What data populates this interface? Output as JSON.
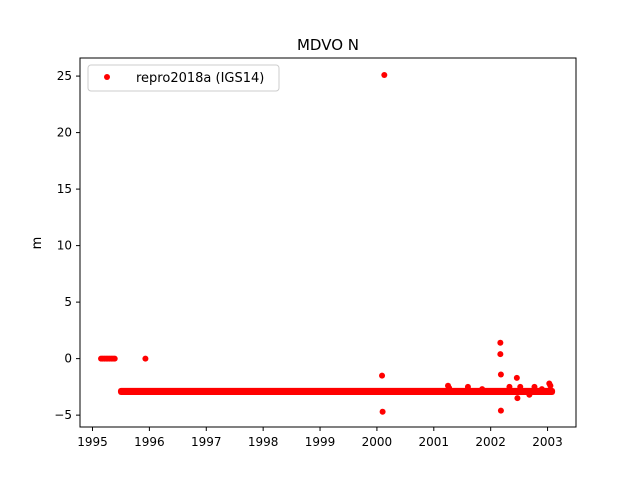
{
  "chart_data": {
    "type": "scatter",
    "title": "MDVO N",
    "xlabel": "",
    "ylabel": "m",
    "xlim": [
      1994.78,
      2003.5
    ],
    "ylim": [
      -6.05,
      26.6
    ],
    "xticks": [
      1995,
      1996,
      1997,
      1998,
      1999,
      2000,
      2001,
      2002,
      2003
    ],
    "yticks": [
      -5,
      0,
      5,
      10,
      15,
      20,
      25
    ],
    "grid": false,
    "legend_position": "top-left",
    "series": [
      {
        "name": "repro2018a (IGS14)",
        "color": "#ff0000",
        "marker": "circle",
        "points": [
          [
            1995.15,
            0.0
          ],
          [
            1995.18,
            0.0
          ],
          [
            1995.21,
            0.0
          ],
          [
            1995.24,
            0.0
          ],
          [
            1995.27,
            0.0
          ],
          [
            1995.3,
            0.0
          ],
          [
            1995.33,
            0.0
          ],
          [
            1995.36,
            0.0
          ],
          [
            1995.39,
            0.0
          ],
          [
            1995.93,
            0.0
          ],
          [
            2000.09,
            -1.5
          ],
          [
            2000.1,
            -4.7
          ],
          [
            2000.13,
            25.1
          ],
          [
            2001.25,
            -2.4
          ],
          [
            2001.27,
            -2.6
          ],
          [
            2001.6,
            -2.5
          ],
          [
            2001.85,
            -2.7
          ],
          [
            2002.17,
            1.4
          ],
          [
            2002.17,
            0.4
          ],
          [
            2002.18,
            -1.4
          ],
          [
            2002.18,
            -4.6
          ],
          [
            2002.33,
            -2.5
          ],
          [
            2002.46,
            -1.7
          ],
          [
            2002.47,
            -3.5
          ],
          [
            2002.52,
            -2.5
          ],
          [
            2002.68,
            -3.2
          ],
          [
            2002.77,
            -2.5
          ],
          [
            2002.9,
            -2.7
          ],
          [
            2003.03,
            -2.2
          ],
          [
            2003.05,
            -2.4
          ]
        ],
        "dense_band": {
          "x_start": 1995.5,
          "x_end": 2003.08,
          "y_start": -2.95,
          "y_end": -2.85
        }
      }
    ]
  }
}
